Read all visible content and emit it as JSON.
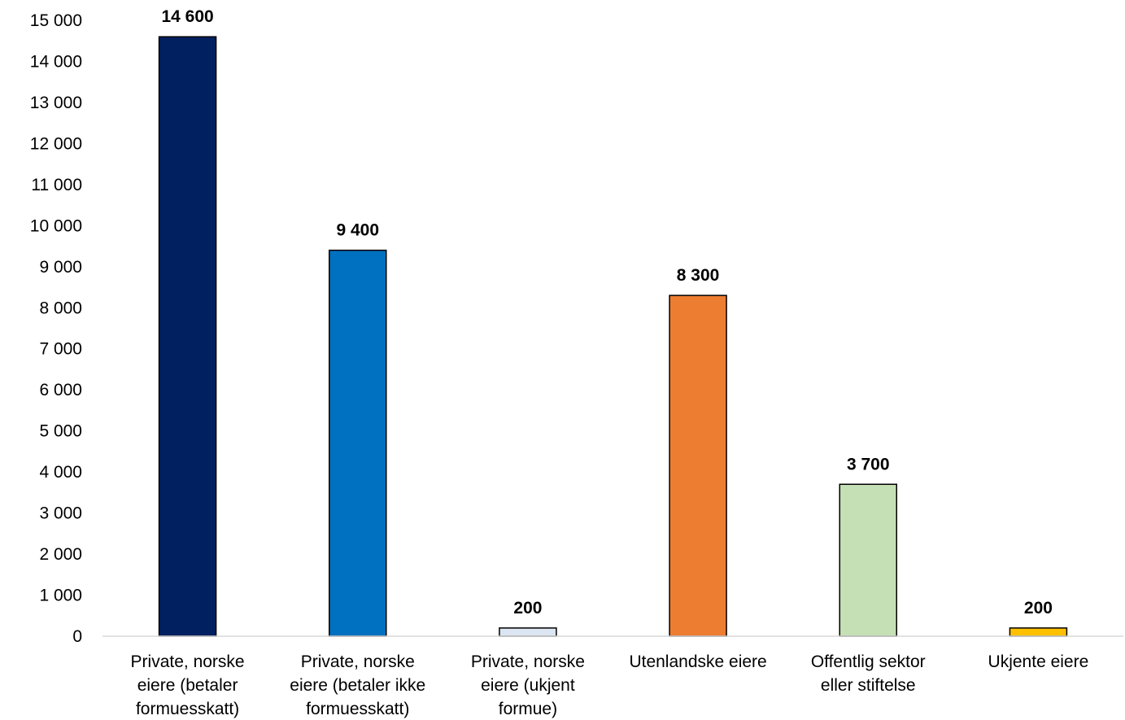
{
  "chart_data": {
    "type": "bar",
    "title": "",
    "xlabel": "",
    "ylabel": "",
    "ylim": [
      0,
      15000
    ],
    "yticks": [
      0,
      1000,
      2000,
      3000,
      4000,
      5000,
      6000,
      7000,
      8000,
      9000,
      10000,
      11000,
      12000,
      13000,
      14000,
      15000
    ],
    "ytick_labels": [
      "0",
      "1 000",
      "2 000",
      "3 000",
      "4 000",
      "5 000",
      "6 000",
      "7 000",
      "8 000",
      "9 000",
      "10 000",
      "11 000",
      "12 000",
      "13 000",
      "14 000",
      "15 000"
    ],
    "grid": false,
    "legend": "none",
    "categories": [
      [
        "Private, norske",
        "eiere (betaler",
        "formuesskatt)"
      ],
      [
        "Private, norske",
        "eiere (betaler ikke",
        "formuesskatt)"
      ],
      [
        "Private, norske",
        "eiere (ukjent",
        "formue)"
      ],
      [
        "Utenlandske eiere"
      ],
      [
        "Offentlig sektor",
        "eller stiftelse"
      ],
      [
        "Ukjente eiere"
      ]
    ],
    "values": [
      14600,
      9400,
      200,
      8300,
      3700,
      200
    ],
    "data_labels": [
      "14 600",
      "9 400",
      "200",
      "8 300",
      "3 700",
      "200"
    ],
    "colors": [
      "#002060",
      "#0070C0",
      "#DCE6F2",
      "#ED7D31",
      "#C5E0B4",
      "#FFC000"
    ]
  }
}
